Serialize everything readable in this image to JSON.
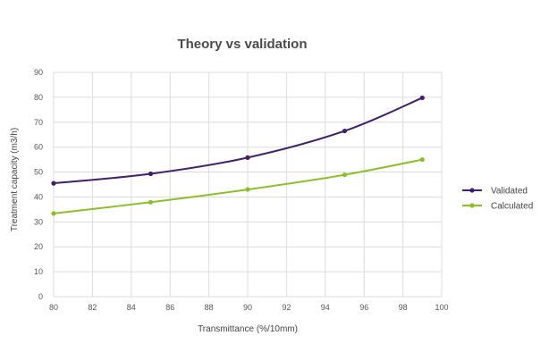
{
  "chart_data": {
    "type": "line",
    "title": "Theory vs validation",
    "xlabel": "Transmittance (%/10mm)",
    "ylabel": "Treatment capacity (m3/h)",
    "xlim": [
      80,
      100
    ],
    "ylim": [
      0,
      90
    ],
    "x_ticks": [
      "80",
      "82",
      "84",
      "86",
      "88",
      "90",
      "92",
      "94",
      "96",
      "98",
      "100"
    ],
    "y_ticks": [
      "0",
      "10",
      "20",
      "30",
      "40",
      "50",
      "60",
      "70",
      "80",
      "90"
    ],
    "grid": true,
    "legend_position": "right",
    "series": [
      {
        "name": "Validated",
        "color": "#3f2066",
        "points": [
          [
            80,
            45.5
          ],
          [
            85,
            49.3
          ],
          [
            90,
            55.8
          ],
          [
            95,
            66.5
          ],
          [
            99,
            79.8
          ]
        ]
      },
      {
        "name": "Calculated",
        "color": "#8bbf2a",
        "points": [
          [
            80,
            33.4
          ],
          [
            85,
            37.9
          ],
          [
            90,
            43.0
          ],
          [
            95,
            48.9
          ],
          [
            99,
            55.0
          ]
        ]
      }
    ]
  }
}
